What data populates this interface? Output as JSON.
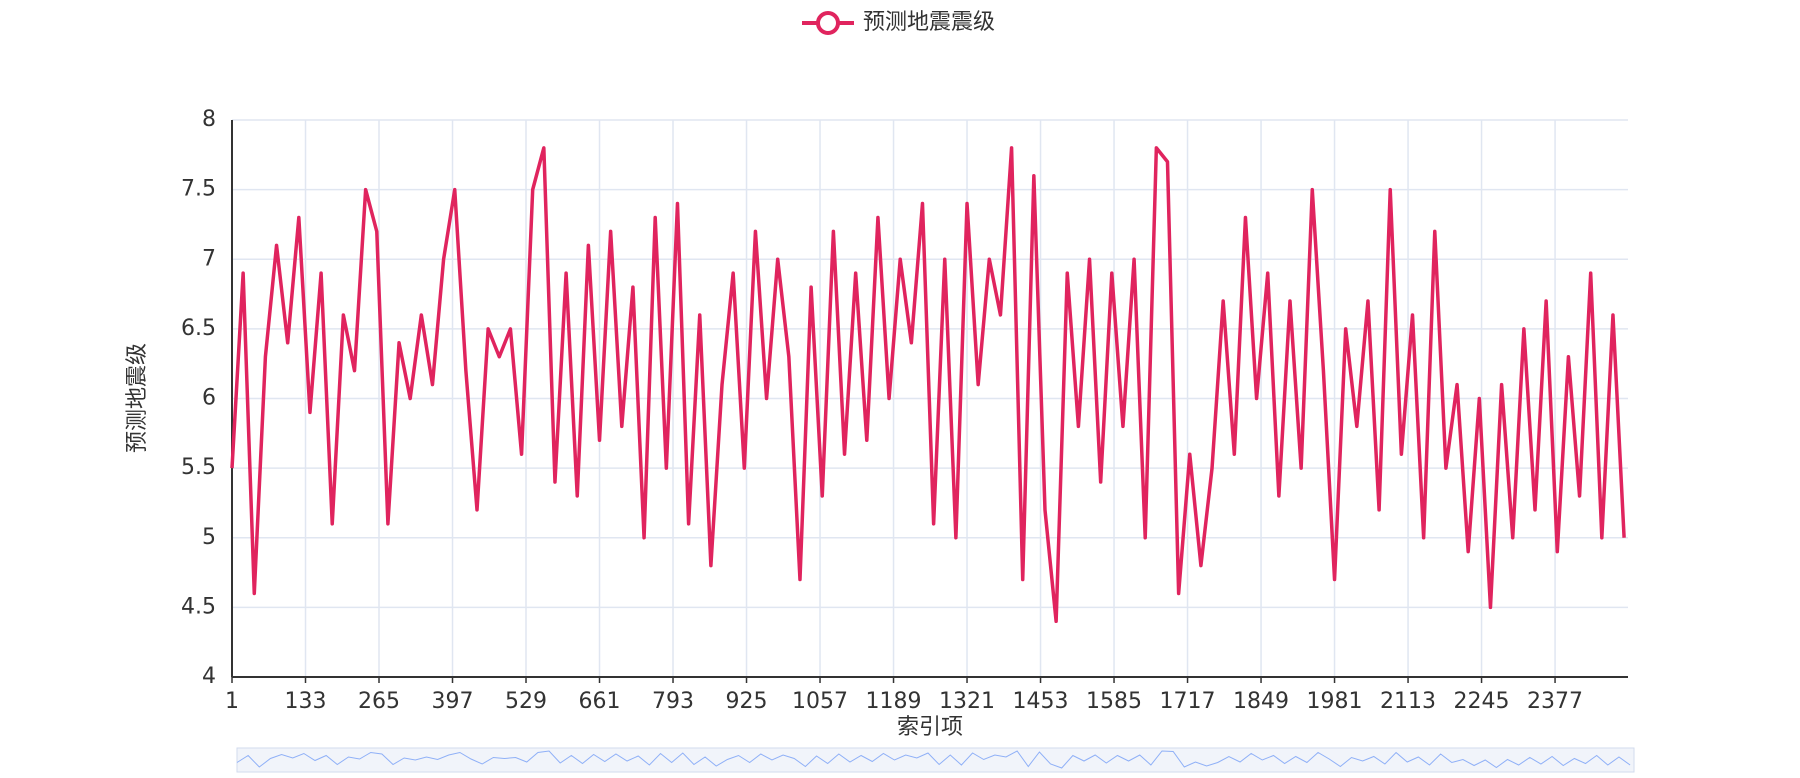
{
  "chart_data": {
    "type": "line",
    "x_label": "索引项",
    "y_label": "预测地震级",
    "x": [
      1,
      21,
      41,
      61,
      81,
      101,
      121,
      141,
      161,
      181,
      201,
      221,
      241,
      261,
      281,
      301,
      321,
      341,
      361,
      381,
      401,
      421,
      441,
      461,
      481,
      501,
      521,
      541,
      561,
      581,
      601,
      621,
      641,
      661,
      681,
      701,
      721,
      741,
      761,
      781,
      801,
      821,
      841,
      861,
      881,
      901,
      921,
      941,
      961,
      981,
      1001,
      1021,
      1041,
      1061,
      1081,
      1101,
      1121,
      1141,
      1161,
      1181,
      1201,
      1221,
      1241,
      1261,
      1281,
      1301,
      1321,
      1341,
      1361,
      1381,
      1401,
      1421,
      1441,
      1461,
      1481,
      1501,
      1521,
      1541,
      1561,
      1581,
      1601,
      1621,
      1641,
      1661,
      1681,
      1701,
      1721,
      1741,
      1761,
      1781,
      1801,
      1821,
      1841,
      1861,
      1881,
      1901,
      1921,
      1941,
      1961,
      1981,
      2001,
      2021,
      2041,
      2061,
      2081,
      2101,
      2121,
      2141,
      2161,
      2181,
      2201,
      2221,
      2241,
      2261,
      2281,
      2301,
      2321,
      2341,
      2361,
      2381,
      2401,
      2421,
      2441,
      2461,
      2481,
      2501
    ],
    "series": [
      {
        "name": "预测地震震级",
        "color": "#e0245e",
        "values": [
          5.5,
          6.9,
          4.6,
          6.3,
          7.1,
          6.4,
          7.3,
          5.9,
          6.9,
          5.1,
          6.6,
          6.2,
          7.5,
          7.2,
          5.1,
          6.4,
          6.0,
          6.6,
          6.1,
          7.0,
          7.5,
          6.2,
          5.2,
          6.5,
          6.3,
          6.5,
          5.6,
          7.5,
          7.8,
          5.4,
          6.9,
          5.3,
          7.1,
          5.7,
          7.2,
          5.8,
          6.8,
          5.0,
          7.3,
          5.5,
          7.4,
          5.1,
          6.6,
          4.8,
          6.1,
          6.9,
          5.5,
          7.2,
          6.0,
          7.0,
          6.3,
          4.7,
          6.8,
          5.3,
          7.2,
          5.6,
          6.9,
          5.7,
          7.3,
          6.0,
          7.0,
          6.4,
          7.4,
          5.1,
          7.0,
          5.0,
          7.4,
          6.1,
          7.0,
          6.6,
          7.8,
          4.7,
          7.6,
          5.2,
          4.4,
          6.9,
          5.8,
          7.0,
          5.4,
          6.9,
          5.8,
          7.0,
          5.0,
          7.8,
          7.7,
          4.6,
          5.6,
          4.8,
          5.5,
          6.7,
          5.6,
          7.3,
          6.0,
          6.9,
          5.3,
          6.7,
          5.5,
          7.5,
          6.2,
          4.7,
          6.5,
          5.8,
          6.7,
          5.2,
          7.5,
          5.6,
          6.6,
          5.0,
          7.2,
          5.5,
          6.1,
          4.9,
          6.0,
          4.5,
          6.1,
          5.0,
          6.5,
          5.2,
          6.7,
          4.9,
          6.3,
          5.3,
          6.9,
          5.0,
          6.6,
          5.0
        ]
      }
    ],
    "xlim": [
      1,
      2508
    ],
    "xticks": [
      1,
      133,
      265,
      397,
      529,
      661,
      793,
      925,
      1057,
      1189,
      1321,
      1453,
      1585,
      1717,
      1849,
      1981,
      2113,
      2245,
      2377
    ],
    "ylim": [
      4,
      8
    ],
    "yticks": [
      4,
      4.5,
      5,
      5.5,
      6,
      6.5,
      7,
      7.5,
      8
    ],
    "grid": true
  }
}
